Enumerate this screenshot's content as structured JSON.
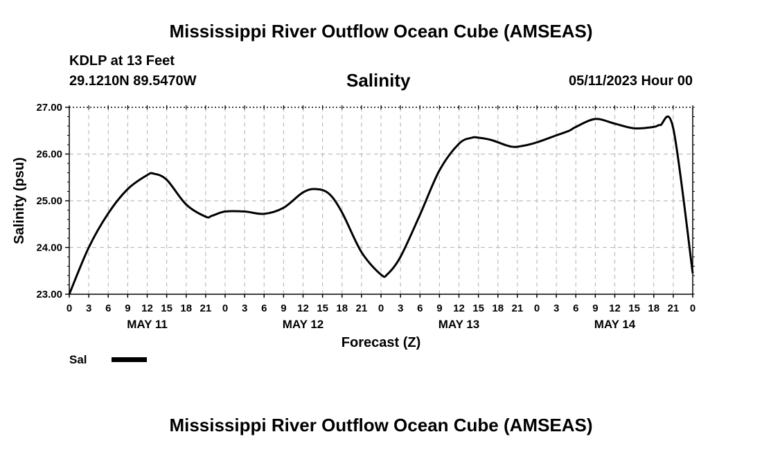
{
  "page": {
    "title_top": "Mississippi River Outflow Ocean Cube (AMSEAS)",
    "title_bottom": "Mississippi River Outflow Ocean Cube (AMSEAS)",
    "station_label": "KDLP at 13 Feet",
    "coords_label": "29.1210N  89.5470W",
    "variable_title": "Salinity",
    "date_label": "05/11/2023 Hour 00"
  },
  "legend": {
    "label": "Sal",
    "color": "#000000"
  },
  "chart_data": {
    "type": "line",
    "title": "Salinity",
    "xlabel": "Forecast (Z)",
    "ylabel": "Salinity (psu)",
    "xlim": [
      0,
      96
    ],
    "ylim": [
      23.0,
      27.0
    ],
    "grid": true,
    "yticks": [
      "23.00",
      "24.00",
      "25.00",
      "26.00",
      "27.00"
    ],
    "xtick_labels": [
      "0",
      "3",
      "6",
      "9",
      "12",
      "15",
      "18",
      "21",
      "0",
      "3",
      "6",
      "9",
      "12",
      "15",
      "18",
      "21",
      "0",
      "3",
      "6",
      "9",
      "12",
      "15",
      "18",
      "21",
      "0",
      "3",
      "6",
      "9",
      "12",
      "15",
      "18",
      "21",
      "0"
    ],
    "day_labels": [
      "MAY 11",
      "MAY 12",
      "MAY 13",
      "MAY 14"
    ],
    "series": [
      {
        "name": "Sal",
        "color": "#000000",
        "x": [
          0,
          3,
          6,
          9,
          12,
          13,
          15,
          18,
          21,
          22,
          24,
          27,
          30,
          33,
          36,
          38,
          40,
          42,
          45,
          48,
          49,
          51,
          54,
          57,
          60,
          62,
          63,
          65,
          68,
          70,
          72,
          75,
          77,
          78,
          81,
          84,
          87,
          90,
          91,
          93,
          96
        ],
        "values": [
          23.0,
          24.0,
          24.73,
          25.25,
          25.55,
          25.58,
          25.45,
          24.92,
          24.66,
          24.68,
          24.77,
          24.77,
          24.72,
          24.85,
          25.18,
          25.25,
          25.15,
          24.75,
          23.9,
          23.42,
          23.43,
          23.8,
          24.7,
          25.65,
          26.22,
          26.35,
          26.35,
          26.3,
          26.16,
          26.18,
          26.25,
          26.4,
          26.5,
          26.58,
          26.75,
          26.65,
          26.55,
          26.58,
          26.62,
          26.55,
          23.45
        ]
      }
    ]
  }
}
